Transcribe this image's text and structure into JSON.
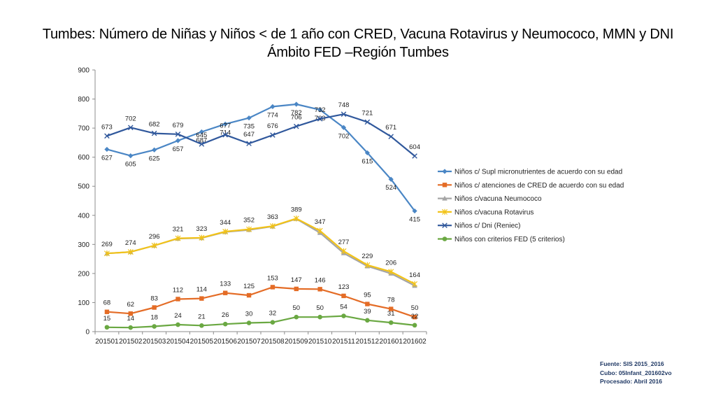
{
  "title_line1": "Tumbes: Número de Niñas y Niños < de 1 año con CRED, Vacuna Rotavirus y Neumococo, MMN y DNI",
  "title_line2": "Ámbito FED –Región Tumbes",
  "source": {
    "line1": "Fuente: SIS 2015_2016",
    "line2": "Cubo: 05Infant_201602vo",
    "line3": "Procesado: Abril 2016"
  },
  "chart_data": {
    "type": "line",
    "categories": [
      "201501",
      "201502",
      "201503",
      "201504",
      "201505",
      "201506",
      "201507",
      "201508",
      "201509",
      "201510",
      "201511",
      "201512",
      "201601",
      "201602"
    ],
    "ylim": [
      0,
      900
    ],
    "yticks": [
      0,
      100,
      200,
      300,
      400,
      500,
      600,
      700,
      800,
      900
    ],
    "legend_position": "right",
    "series": [
      {
        "name": "Niños c/ Supl micronutrientes de acuerdo con su edad",
        "color": "#4a86c5",
        "marker": "diamond",
        "labels": true,
        "label_pos": "below",
        "values": [
          627,
          605,
          625,
          657,
          687,
          714,
          735,
          774,
          782,
          763,
          702,
          615,
          524,
          415
        ]
      },
      {
        "name": "Niños c/ atenciones de CRED de acuerdo con su edad",
        "color": "#e46c26",
        "marker": "square",
        "labels": true,
        "label_pos": "above",
        "values": [
          68,
          62,
          83,
          112,
          114,
          133,
          125,
          153,
          147,
          146,
          123,
          95,
          78,
          50
        ]
      },
      {
        "name": "Niños c/vacuna Neumococo",
        "color": "#a5a5a5",
        "marker": "triangle",
        "labels": false,
        "label_pos": "none",
        "values": [
          269,
          274,
          296,
          320,
          322,
          343,
          350,
          362,
          388,
          340,
          270,
          225,
          200,
          158
        ]
      },
      {
        "name": "Niños c/vacuna Rotavirus",
        "color": "#f2c318",
        "marker": "star",
        "labels": true,
        "label_pos": "above",
        "values": [
          269,
          274,
          296,
          321,
          323,
          344,
          352,
          363,
          389,
          347,
          277,
          229,
          206,
          164
        ]
      },
      {
        "name": "Niños c/ Dni (Reniec)",
        "color": "#30589c",
        "marker": "x",
        "labels": true,
        "label_pos": "above",
        "values": [
          673,
          702,
          682,
          679,
          645,
          677,
          647,
          676,
          706,
          732,
          748,
          721,
          671,
          604
        ]
      },
      {
        "name": "Niños con criterios FED (5 criterios)",
        "color": "#6aa842",
        "marker": "circle",
        "labels": true,
        "label_pos": "above",
        "values": [
          15,
          14,
          18,
          24,
          21,
          26,
          30,
          32,
          50,
          50,
          54,
          39,
          31,
          22
        ]
      }
    ]
  }
}
